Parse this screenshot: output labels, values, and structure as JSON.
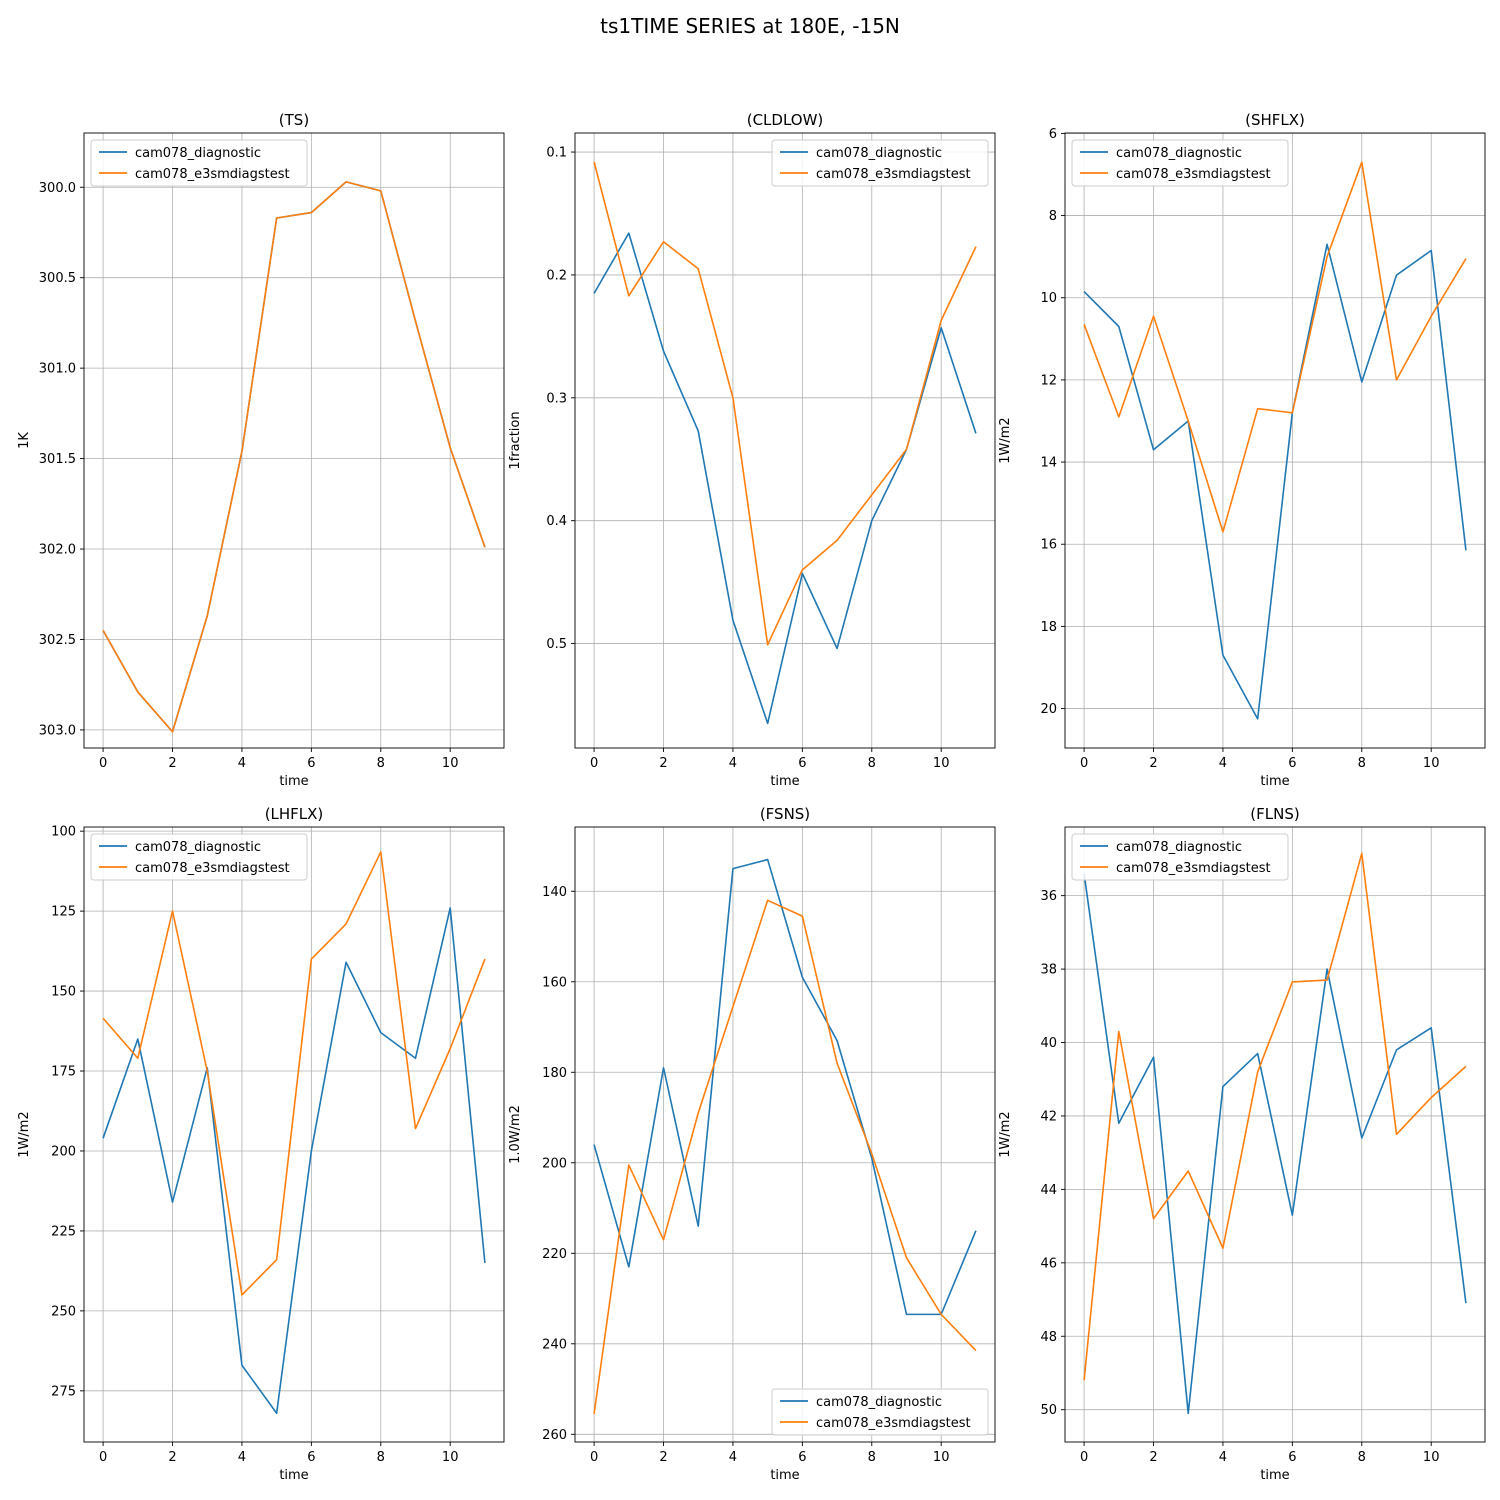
{
  "title": "ts1TIME SERIES at 180E, -15N",
  "colors": {
    "series1": "#1f77b4",
    "series2": "#ff7f0e",
    "grid": "#b0b0b0",
    "axes": "#000000"
  },
  "chart_data": [
    {
      "type": "line",
      "title": "(TS)",
      "xlabel": "time",
      "ylabel": "1K",
      "x": [
        0,
        1,
        2,
        3,
        4,
        5,
        6,
        7,
        8,
        9,
        10,
        11
      ],
      "xlim": [
        -0.55,
        11.55
      ],
      "xticks": [
        0,
        2,
        4,
        6,
        8,
        10
      ],
      "ylim": [
        303.1,
        299.7
      ],
      "yticks": [
        300.0,
        300.5,
        301.0,
        301.5,
        302.0,
        302.5,
        303.0
      ],
      "ytick_labels": [
        "300.0",
        "300.5",
        "301.0",
        "301.5",
        "302.0",
        "302.5",
        "303.0"
      ],
      "y_inverted": true,
      "grid": true,
      "legend": "upper left",
      "series": [
        {
          "name": "cam078_diagnostic",
          "values": [
            302.45,
            302.79,
            303.01,
            302.37,
            301.46,
            300.17,
            300.14,
            299.97,
            300.02,
            300.74,
            301.44,
            301.99
          ]
        },
        {
          "name": "cam078_e3smdiagstest",
          "values": [
            302.45,
            302.79,
            303.01,
            302.37,
            301.46,
            300.17,
            300.14,
            299.97,
            300.02,
            300.74,
            301.44,
            301.99
          ]
        }
      ]
    },
    {
      "type": "line",
      "title": "(CLDLOW)",
      "xlabel": "time",
      "ylabel": "1fraction",
      "x": [
        0,
        1,
        2,
        3,
        4,
        5,
        6,
        7,
        8,
        9,
        10,
        11
      ],
      "xlim": [
        -0.55,
        11.55
      ],
      "xticks": [
        0,
        2,
        4,
        6,
        8,
        10
      ],
      "ylim": [
        0.585,
        0.0845
      ],
      "yticks": [
        0.1,
        0.2,
        0.3,
        0.4,
        0.5
      ],
      "ytick_labels": [
        "0.1",
        "0.2",
        "0.3",
        "0.4",
        "0.5"
      ],
      "y_inverted": true,
      "grid": true,
      "legend": "upper right",
      "series": [
        {
          "name": "cam078_diagnostic",
          "values": [
            0.215,
            0.166,
            0.262,
            0.327,
            0.481,
            0.565,
            0.443,
            0.504,
            0.4,
            0.342,
            0.243,
            0.329
          ]
        },
        {
          "name": "cam078_e3smdiagstest",
          "values": [
            0.108,
            0.217,
            0.173,
            0.195,
            0.3,
            0.501,
            0.44,
            0.416,
            0.379,
            0.342,
            0.237,
            0.177
          ]
        }
      ]
    },
    {
      "type": "line",
      "title": "(SHFLX)",
      "xlabel": "time",
      "ylabel": "1W/m2",
      "x": [
        0,
        1,
        2,
        3,
        4,
        5,
        6,
        7,
        8,
        9,
        10,
        11
      ],
      "xlim": [
        -0.55,
        11.55
      ],
      "xticks": [
        0,
        2,
        4,
        6,
        8,
        10
      ],
      "ylim": [
        20.96,
        5.99
      ],
      "yticks": [
        6,
        8,
        10,
        12,
        14,
        16,
        18,
        20
      ],
      "ytick_labels": [
        "6",
        "8",
        "10",
        "12",
        "14",
        "16",
        "18",
        "20"
      ],
      "y_inverted": true,
      "grid": true,
      "legend": "upper left",
      "series": [
        {
          "name": "cam078_diagnostic",
          "values": [
            9.85,
            10.7,
            13.7,
            13.0,
            18.7,
            20.25,
            12.8,
            8.7,
            12.05,
            9.45,
            8.85,
            16.15
          ]
        },
        {
          "name": "cam078_e3smdiagstest",
          "values": [
            10.65,
            12.9,
            10.45,
            13.0,
            15.7,
            12.7,
            12.8,
            9.0,
            6.7,
            12.0,
            10.45,
            9.05
          ]
        }
      ]
    },
    {
      "type": "line",
      "title": "(LHFLX)",
      "xlabel": "time",
      "ylabel": "1W/m2",
      "x": [
        0,
        1,
        2,
        3,
        4,
        5,
        6,
        7,
        8,
        9,
        10,
        11
      ],
      "xlim": [
        -0.55,
        11.55
      ],
      "xticks": [
        0,
        2,
        4,
        6,
        8,
        10
      ],
      "ylim": [
        291,
        98.7
      ],
      "yticks": [
        100,
        125,
        150,
        175,
        200,
        225,
        250,
        275
      ],
      "ytick_labels": [
        "100",
        "125",
        "150",
        "175",
        "200",
        "225",
        "250",
        "275"
      ],
      "y_inverted": true,
      "grid": true,
      "legend": "upper left",
      "series": [
        {
          "name": "cam078_diagnostic",
          "values": [
            196,
            165,
            216,
            174,
            267,
            282,
            200,
            141,
            163,
            171,
            124,
            235
          ]
        },
        {
          "name": "cam078_e3smdiagstest",
          "values": [
            158.5,
            171,
            125,
            175,
            245,
            234,
            140,
            129,
            106.5,
            193,
            168,
            140
          ]
        }
      ]
    },
    {
      "type": "line",
      "title": "(FSNS)",
      "xlabel": "time",
      "ylabel": "1.0W/m2",
      "x": [
        0,
        1,
        2,
        3,
        4,
        5,
        6,
        7,
        8,
        9,
        10,
        11
      ],
      "xlim": [
        -0.55,
        11.55
      ],
      "xticks": [
        0,
        2,
        4,
        6,
        8,
        10
      ],
      "ylim": [
        261.7,
        125.8
      ],
      "yticks": [
        140,
        160,
        180,
        200,
        220,
        240,
        260
      ],
      "ytick_labels": [
        "140",
        "160",
        "180",
        "200",
        "220",
        "240",
        "260"
      ],
      "y_inverted": true,
      "grid": true,
      "legend": "lower right",
      "series": [
        {
          "name": "cam078_diagnostic",
          "values": [
            196,
            223,
            179,
            214,
            135,
            133,
            159,
            173,
            199,
            233.5,
            233.5,
            215
          ]
        },
        {
          "name": "cam078_e3smdiagstest",
          "values": [
            255.5,
            200.5,
            217,
            189,
            165.5,
            142,
            145.5,
            178,
            198,
            221,
            233.5,
            241.5
          ]
        }
      ]
    },
    {
      "type": "line",
      "title": "(FLNS)",
      "xlabel": "time",
      "ylabel": "1W/m2",
      "x": [
        0,
        1,
        2,
        3,
        4,
        5,
        6,
        7,
        8,
        9,
        10,
        11
      ],
      "xlim": [
        -0.55,
        11.55
      ],
      "xticks": [
        0,
        2,
        4,
        6,
        8,
        10
      ],
      "ylim": [
        50.88,
        34.13
      ],
      "yticks": [
        36,
        38,
        40,
        42,
        44,
        46,
        48,
        50
      ],
      "ytick_labels": [
        "36",
        "38",
        "40",
        "42",
        "44",
        "46",
        "48",
        "50"
      ],
      "y_inverted": true,
      "grid": true,
      "legend": "upper left",
      "series": [
        {
          "name": "cam078_diagnostic",
          "values": [
            35.4,
            42.2,
            40.4,
            50.1,
            41.2,
            40.3,
            44.7,
            38.0,
            42.6,
            40.2,
            39.6,
            47.1
          ]
        },
        {
          "name": "cam078_e3smdiagstest",
          "values": [
            49.2,
            39.7,
            44.8,
            43.5,
            45.6,
            40.8,
            38.35,
            38.3,
            34.85,
            42.5,
            41.5,
            40.65
          ]
        }
      ]
    }
  ]
}
